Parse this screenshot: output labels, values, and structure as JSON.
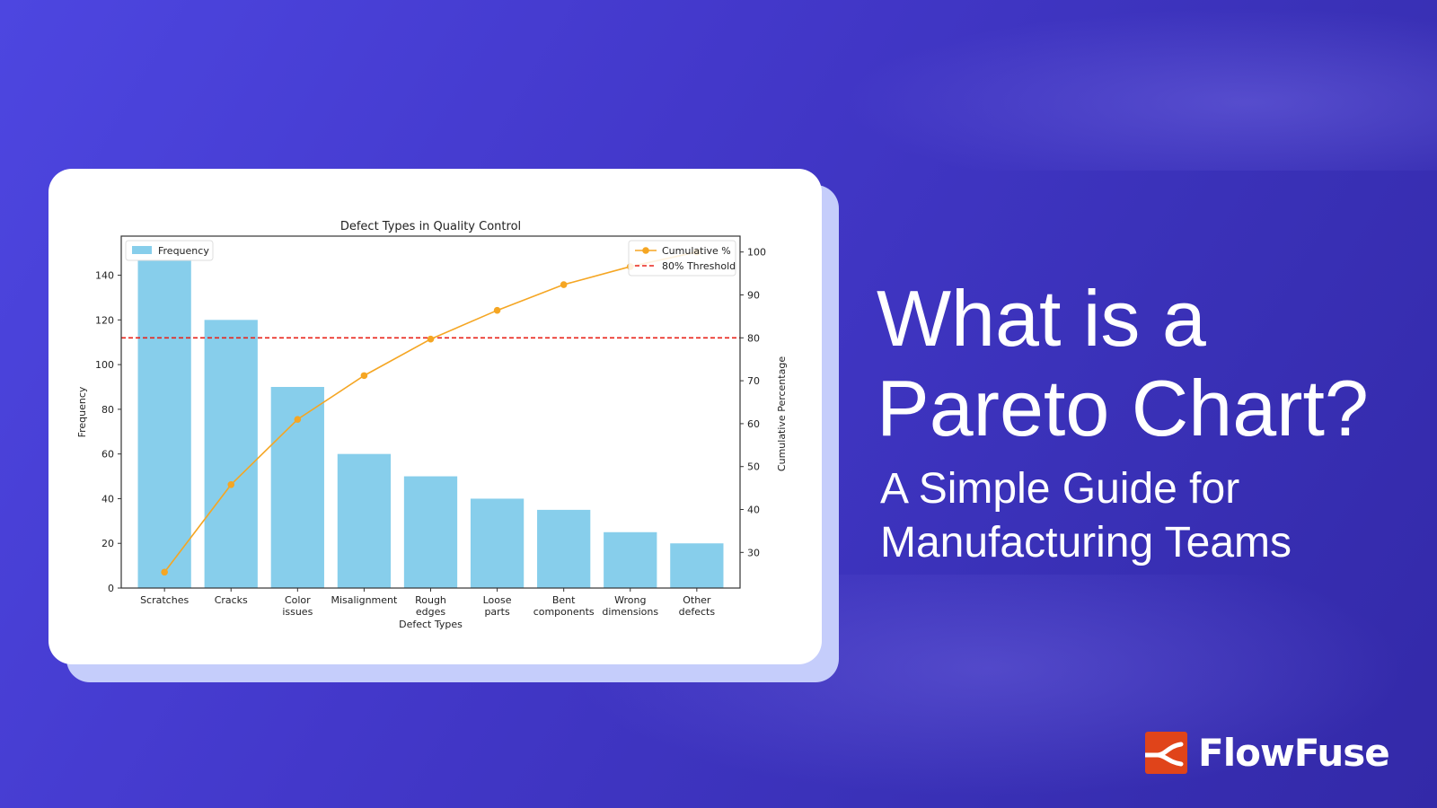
{
  "headline": {
    "line1": "What is a",
    "line2": "Pareto Chart?"
  },
  "subtitle": {
    "line1": "A Simple Guide for",
    "line2": "Manufacturing Teams"
  },
  "brand": {
    "name": "FlowFuse",
    "logo_color": "#e0441a"
  },
  "chart_data": {
    "type": "bar+line",
    "title": "Defect Types in Quality Control",
    "xlabel": "Defect Types",
    "ylabel": "Frequency",
    "y2label": "Cumulative Percentage",
    "categories": [
      [
        "Scratches"
      ],
      [
        "Cracks"
      ],
      [
        "Color",
        "issues"
      ],
      [
        "Misalignment"
      ],
      [
        "Rough",
        "edges"
      ],
      [
        "Loose",
        "parts"
      ],
      [
        "Bent",
        "components"
      ],
      [
        "Wrong",
        "dimensions"
      ],
      [
        "Other",
        "defects"
      ]
    ],
    "series": [
      {
        "name": "Frequency",
        "type": "bar",
        "axis": "left",
        "color": "#87ceeb",
        "values": [
          150,
          120,
          90,
          60,
          50,
          40,
          35,
          25,
          20
        ]
      },
      {
        "name": "Cumulative %",
        "type": "line",
        "axis": "right",
        "color": "#f5a623",
        "values": [
          25.4,
          45.8,
          61.0,
          71.2,
          79.7,
          86.4,
          92.4,
          96.6,
          100.0
        ]
      }
    ],
    "threshold": {
      "name": "80% Threshold",
      "value": 80,
      "axis": "right",
      "color": "#e8231a",
      "style": "dashed"
    },
    "ylim": [
      0,
      157.5
    ],
    "y2lim": [
      21.7,
      103.7
    ],
    "yticks": [
      0,
      20,
      40,
      60,
      80,
      100,
      120,
      140
    ],
    "y2ticks": [
      30,
      40,
      50,
      60,
      70,
      80,
      90,
      100
    ],
    "legend_left": "top-left",
    "legend_right": "top-right",
    "grid": false
  }
}
